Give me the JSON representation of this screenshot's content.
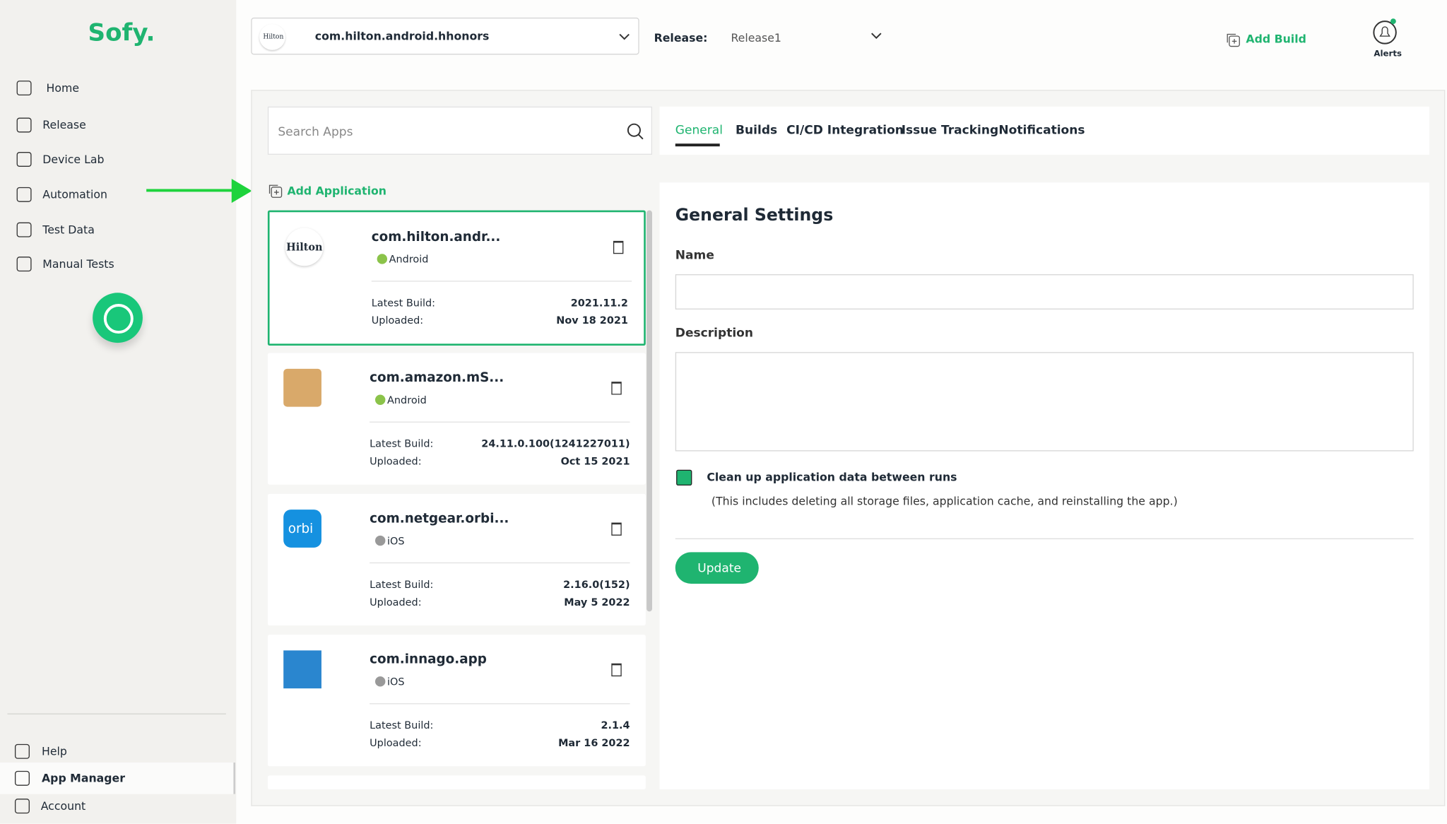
{
  "sidebar": {
    "logo": "Sofy.",
    "nav": [
      "Home",
      "Release",
      "Device Lab",
      "Automation",
      "Test Data",
      "Manual Tests"
    ],
    "bottom": [
      "Help",
      "App Manager",
      "Account"
    ]
  },
  "topbar": {
    "app_logo": "Hilton",
    "app": "com.hilton.android.hhonors",
    "release_label": "Release:",
    "release": "Release1",
    "add_build": "Add Build",
    "alerts": "Alerts"
  },
  "apps": {
    "search_placeholder": "Search Apps",
    "add_application": "Add Application",
    "list": [
      {
        "logo": "Hilton",
        "name": "com.hilton.andr...",
        "platform": "Android",
        "latest_build_label": "Latest Build:",
        "latest_build": "2021.11.2",
        "uploaded_label": "Uploaded:",
        "uploaded": "Nov 18 2021"
      },
      {
        "name": "com.amazon.mS...",
        "platform": "Android",
        "latest_build_label": "Latest Build:",
        "latest_build": "24.11.0.100(1241227011)",
        "uploaded_label": "Uploaded:",
        "uploaded": "Oct 15 2021"
      },
      {
        "logo": "orbi",
        "name": "com.netgear.orbi...",
        "platform": "iOS",
        "latest_build_label": "Latest Build:",
        "latest_build": "2.16.0(152)",
        "uploaded_label": "Uploaded:",
        "uploaded": "May 5 2022"
      },
      {
        "name": "com.innago.app",
        "platform": "iOS",
        "latest_build_label": "Latest Build:",
        "latest_build": "2.1.4",
        "uploaded_label": "Uploaded:",
        "uploaded": "Mar 16 2022"
      }
    ]
  },
  "tabs": [
    "General",
    "Builds",
    "CI/CD Integration",
    "Issue Tracking",
    "Notifications"
  ],
  "form": {
    "title": "General Settings",
    "name_label": "Name",
    "description_label": "Description",
    "checkbox_label": "Clean up application data between runs",
    "checkbox_note": "(This includes deleting all storage files, application cache, and reinstalling the app.)",
    "button": "Update"
  }
}
